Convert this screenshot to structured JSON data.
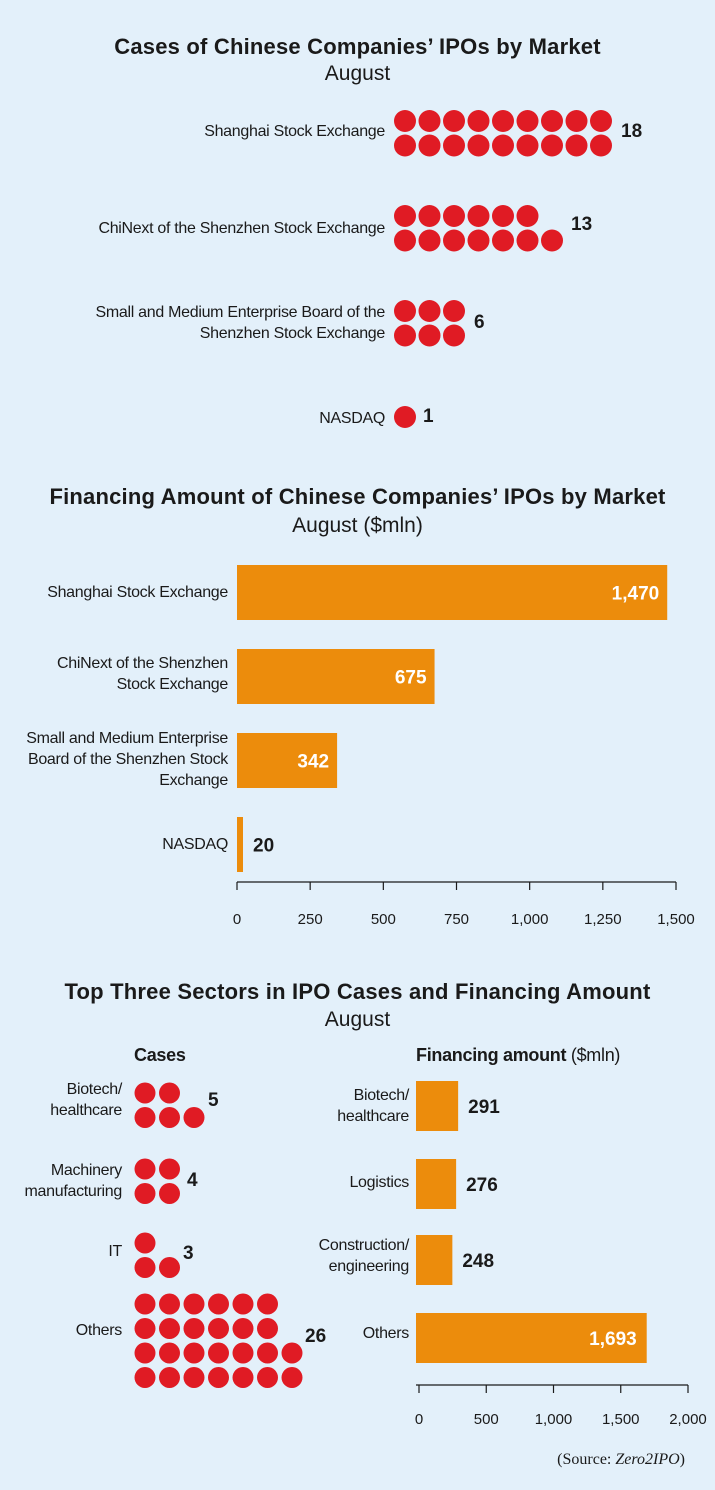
{
  "source": {
    "prefix": "(Source: ",
    "name": "Zero2IPO",
    "suffix": ")"
  },
  "chart_data": [
    {
      "type": "dot",
      "title": "Cases of Chinese Companies’ IPOs by Market",
      "subtitle": "August",
      "categories": [
        "Shanghai Stock Exchange",
        "ChiNext of the Shenzhen Stock Exchange",
        "Small and Medium Enterprise Board of the Shenzhen Stock Exchange",
        "NASDAQ"
      ],
      "values": [
        18,
        13,
        6,
        1
      ],
      "value_labels": [
        "18",
        "13",
        "6",
        "1"
      ],
      "color": "#e01b24"
    },
    {
      "type": "bar",
      "orientation": "horizontal",
      "title": "Financing Amount of Chinese Companies’ IPOs by Market",
      "subtitle": "August ($mln)",
      "categories": [
        "Shanghai Stock Exchange",
        "ChiNext of the Shenzhen Stock Exchange",
        "Small and Medium Enterprise Board of the Shenzhen Stock Exchange",
        "NASDAQ"
      ],
      "values": [
        1470,
        675,
        342,
        20
      ],
      "value_labels": [
        "1,470",
        "675",
        "342",
        "20"
      ],
      "xlim": [
        0,
        1500
      ],
      "xticks": [
        "0",
        "250",
        "500",
        "750",
        "1,000",
        "1,250",
        "1,500"
      ],
      "color": "#ec8c0c"
    },
    {
      "type": "dot",
      "title": "Top Three Sectors in IPO Cases and Financing Amount",
      "subtitle": "August",
      "panel_title": "Cases",
      "categories": [
        "Biotech/ healthcare",
        "Machinery manufacturing",
        "IT",
        "Others"
      ],
      "values": [
        5,
        4,
        3,
        26
      ],
      "value_labels": [
        "5",
        "4",
        "3",
        "26"
      ],
      "color": "#e01b24"
    },
    {
      "type": "bar",
      "orientation": "horizontal",
      "panel_title": "Financing amount",
      "panel_unit": "($mln)",
      "categories": [
        "Biotech/ healthcare",
        "Logistics",
        "Construction/ engineering",
        "Others"
      ],
      "values": [
        291,
        276,
        248,
        1693
      ],
      "value_labels": [
        "291",
        "276",
        "248",
        "1,693"
      ],
      "xlim": [
        0,
        2000
      ],
      "xticks": [
        "0",
        "500",
        "1,000",
        "1,500",
        "2,000"
      ],
      "color": "#ec8c0c"
    }
  ]
}
